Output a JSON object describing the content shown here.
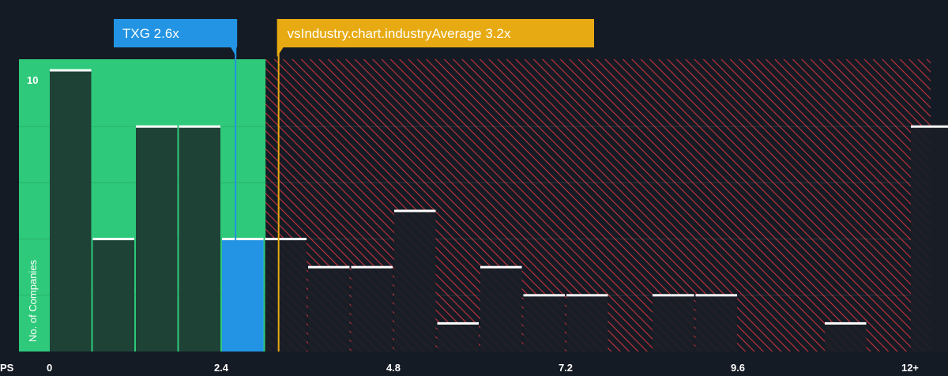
{
  "chart_data": {
    "type": "bar",
    "x_axis_label": "PS",
    "y_axis_label": "No. of Companies",
    "y_tick_labels": [
      {
        "value": 10,
        "label": "10"
      }
    ],
    "x_tick_labels": [
      {
        "value": 0,
        "label": "0"
      },
      {
        "value": 2.4,
        "label": "2.4"
      },
      {
        "value": 4.8,
        "label": "4.8"
      },
      {
        "value": 7.2,
        "label": "7.2"
      },
      {
        "value": 9.6,
        "label": "9.6"
      },
      {
        "value": 12,
        "label": "12+"
      }
    ],
    "xlim": [
      0,
      12
    ],
    "ylim": [
      0,
      10
    ],
    "bin_width": 0.6,
    "bins": [
      {
        "x": 0.0,
        "count": 10
      },
      {
        "x": 0.6,
        "count": 4
      },
      {
        "x": 1.2,
        "count": 8
      },
      {
        "x": 1.8,
        "count": 8
      },
      {
        "x": 2.4,
        "count": 4,
        "highlight": true
      },
      {
        "x": 3.0,
        "count": 4
      },
      {
        "x": 3.6,
        "count": 3
      },
      {
        "x": 4.2,
        "count": 3
      },
      {
        "x": 4.8,
        "count": 5
      },
      {
        "x": 5.4,
        "count": 1
      },
      {
        "x": 6.0,
        "count": 3
      },
      {
        "x": 6.6,
        "count": 2
      },
      {
        "x": 7.2,
        "count": 2
      },
      {
        "x": 7.8,
        "count": 0
      },
      {
        "x": 8.4,
        "count": 2
      },
      {
        "x": 9.0,
        "count": 2
      },
      {
        "x": 9.6,
        "count": 0
      },
      {
        "x": 10.2,
        "count": 0
      },
      {
        "x": 10.8,
        "count": 1
      },
      {
        "x": 11.4,
        "count": 0
      },
      {
        "x": 12.0,
        "count": 8
      }
    ],
    "company": {
      "label": "TXG 2.6x",
      "value": 2.6
    },
    "industry_average": {
      "label": "vsIndustry.chart.industryAverage 3.2x",
      "value": 3.2
    },
    "grid": true
  },
  "colors": {
    "background": "#151b24",
    "good_zone": "#2ec97a",
    "bad_zone_hatch": "#c8323c",
    "bar": "#1e4236",
    "bar_hatched": "#1a1e27",
    "highlight_bar": "#2394e3",
    "bar_top": "#ffffff",
    "company_marker": "#2394e3",
    "industry_marker": "#e7aa12",
    "text": "#ffffff"
  }
}
